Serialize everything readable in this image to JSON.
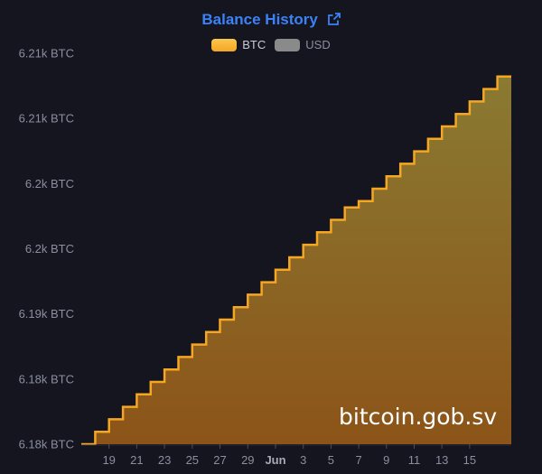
{
  "header": {
    "title": "Balance History",
    "link_icon": "external-link-icon"
  },
  "legend": [
    {
      "label": "BTC",
      "color": "#f5a623",
      "active": true
    },
    {
      "label": "USD",
      "color": "#8a8a8a",
      "active": false
    }
  ],
  "watermark": "bitcoin.gob.sv",
  "chart_data": {
    "type": "area",
    "step": true,
    "title": "Balance History",
    "series": [
      {
        "name": "BTC",
        "color": "#f5a623",
        "x": [
          "May 17",
          "May 18",
          "May 19",
          "May 20",
          "May 21",
          "May 22",
          "May 23",
          "May 24",
          "May 25",
          "May 26",
          "May 27",
          "May 28",
          "May 29",
          "May 30",
          "May 31",
          "Jun 1",
          "Jun 2",
          "Jun 3",
          "Jun 4",
          "Jun 5",
          "Jun 6",
          "Jun 7",
          "Jun 8",
          "Jun 9",
          "Jun 10",
          "Jun 11",
          "Jun 12",
          "Jun 13",
          "Jun 14",
          "Jun 15",
          "Jun 16"
        ],
        "values": [
          6176.0,
          6177.0,
          6178.0,
          6179.0,
          6180.0,
          6181.0,
          6182.0,
          6183.0,
          6184.0,
          6185.0,
          6186.0,
          6187.0,
          6188.0,
          6189.0,
          6190.0,
          6191.0,
          6192.0,
          6193.0,
          6194.0,
          6195.0,
          6195.5,
          6196.5,
          6197.5,
          6198.5,
          6199.5,
          6200.5,
          6201.5,
          6202.5,
          6203.5,
          6204.5,
          6205.5
        ]
      }
    ],
    "x_ticks": [
      "19",
      "21",
      "23",
      "25",
      "27",
      "29",
      "Jun",
      "3",
      "5",
      "7",
      "9",
      "11",
      "13",
      "15"
    ],
    "y_tick_labels": [
      "6.21k BTC",
      "6.21k BTC",
      "6.2k BTC",
      "6.2k BTC",
      "6.19k BTC",
      "6.18k BTC",
      "6.18k BTC"
    ],
    "ylim": [
      6176,
      6206.5
    ],
    "grid": false,
    "legend_position": "top-center"
  }
}
